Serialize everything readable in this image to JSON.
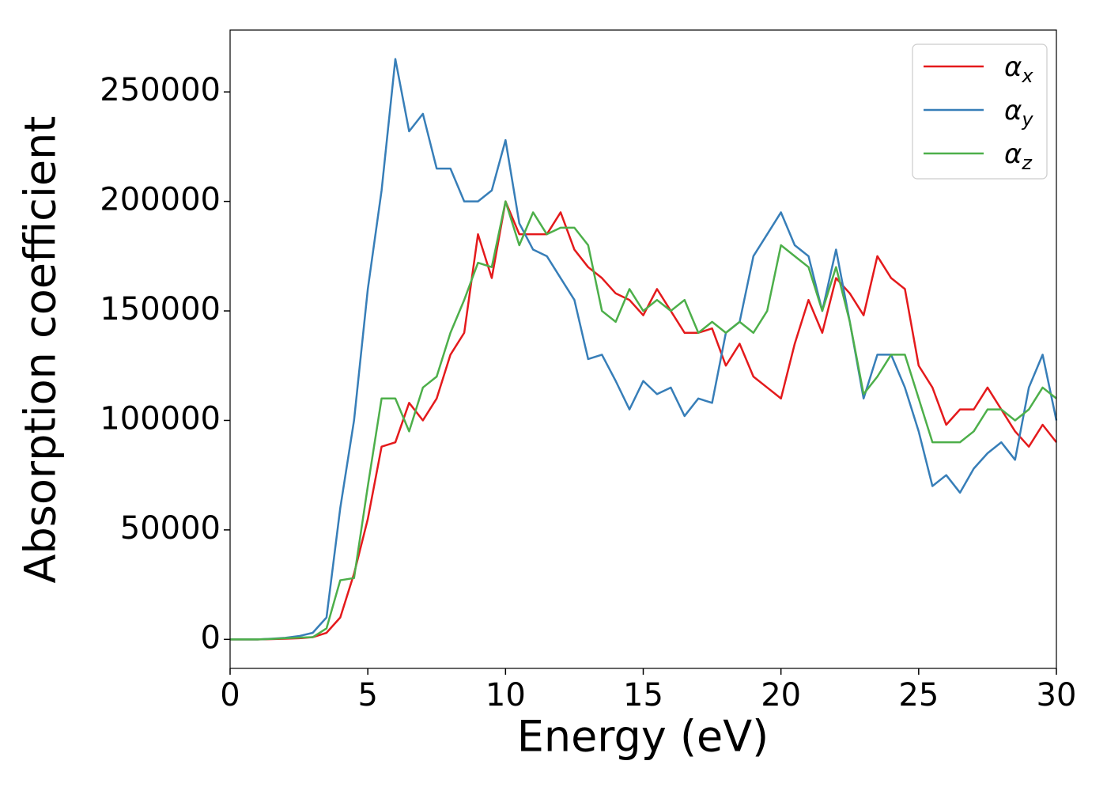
{
  "chart_data": {
    "type": "line",
    "xlabel": "Energy (eV)",
    "ylabel": "Absorption coefficient",
    "x": [
      0,
      0.5,
      1,
      1.5,
      2,
      2.5,
      3,
      3.5,
      4,
      4.5,
      5,
      5.5,
      6,
      6.5,
      7,
      7.5,
      8,
      8.5,
      9,
      9.5,
      10,
      10.5,
      11,
      11.5,
      12,
      12.5,
      13,
      13.5,
      14,
      14.5,
      15,
      15.5,
      16,
      16.5,
      17,
      17.5,
      18,
      18.5,
      19,
      19.5,
      20,
      20.5,
      21,
      21.5,
      22,
      22.5,
      23,
      23.5,
      24,
      24.5,
      25,
      25.5,
      26,
      26.5,
      27,
      27.5,
      28,
      28.5,
      29,
      29.5,
      30
    ],
    "series": [
      {
        "name": "αx",
        "color": "#e41a1c",
        "values": [
          0,
          0,
          0,
          100,
          300,
          500,
          1000,
          3000,
          10000,
          30000,
          55000,
          88000,
          90000,
          108000,
          100000,
          110000,
          130000,
          140000,
          185000,
          165000,
          200000,
          185000,
          185000,
          185000,
          195000,
          178000,
          170000,
          165000,
          158000,
          155000,
          148000,
          160000,
          150000,
          140000,
          140000,
          142000,
          125000,
          135000,
          120000,
          115000,
          110000,
          135000,
          155000,
          140000,
          165000,
          158000,
          148000,
          175000,
          165000,
          160000,
          125000,
          115000,
          98000,
          105000,
          105000,
          115000,
          105000,
          95000,
          88000,
          98000,
          90000
        ]
      },
      {
        "name": "αy",
        "color": "#377eb8",
        "values": [
          0,
          0,
          0,
          300,
          700,
          1500,
          3000,
          10000,
          60000,
          100000,
          160000,
          205000,
          265000,
          232000,
          240000,
          215000,
          215000,
          200000,
          200000,
          205000,
          228000,
          190000,
          178000,
          175000,
          165000,
          155000,
          128000,
          130000,
          118000,
          105000,
          118000,
          112000,
          115000,
          102000,
          110000,
          108000,
          140000,
          145000,
          175000,
          185000,
          195000,
          180000,
          175000,
          150000,
          178000,
          145000,
          110000,
          130000,
          130000,
          115000,
          95000,
          70000,
          75000,
          67000,
          78000,
          85000,
          90000,
          82000,
          115000,
          130000,
          100000
        ]
      },
      {
        "name": "αz",
        "color": "#4daf4a",
        "values": [
          0,
          0,
          0,
          200,
          500,
          800,
          1000,
          5000,
          27000,
          28000,
          70000,
          110000,
          110000,
          95000,
          115000,
          120000,
          140000,
          155000,
          172000,
          170000,
          200000,
          180000,
          195000,
          185000,
          188000,
          188000,
          180000,
          150000,
          145000,
          160000,
          150000,
          155000,
          150000,
          155000,
          140000,
          145000,
          140000,
          145000,
          140000,
          150000,
          180000,
          175000,
          170000,
          150000,
          170000,
          145000,
          112000,
          120000,
          130000,
          130000,
          110000,
          90000,
          90000,
          90000,
          95000,
          105000,
          105000,
          100000,
          105000,
          115000,
          110000
        ]
      }
    ],
    "xlim": [
      0,
      30
    ],
    "xticks": [
      0,
      5,
      10,
      15,
      20,
      25,
      30
    ],
    "ylim": [
      -13250,
      278250
    ],
    "yticks": [
      0,
      50000,
      100000,
      150000,
      200000,
      250000
    ],
    "grid": false,
    "legend": "upper right"
  }
}
